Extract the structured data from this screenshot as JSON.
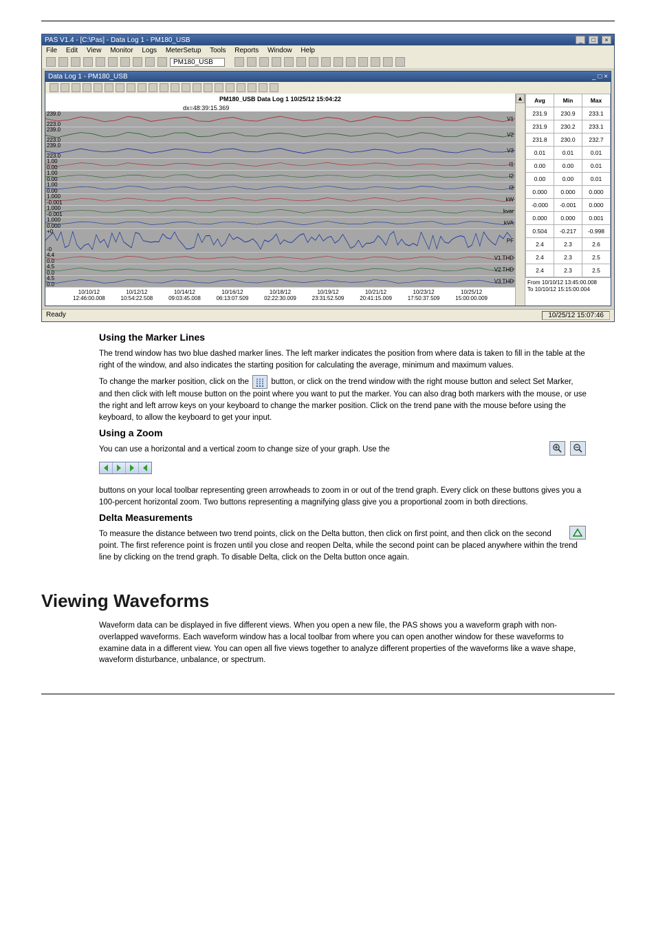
{
  "app_window": {
    "title": "PAS V1.4 - [C:\\Pas] - Data Log 1 - PM180_USB",
    "menu": [
      "File",
      "Edit",
      "View",
      "Monitor",
      "Logs",
      "MeterSetup",
      "Tools",
      "Reports",
      "Window",
      "Help"
    ],
    "device_combo": "PM180_USB"
  },
  "inner_window": {
    "title": "Data Log 1 - PM180_USB",
    "chart_title": "PM180_USB Data Log 1 10/25/12 15:04:22",
    "dx_label": "dx=48:39:15.369",
    "stats_header": [
      "Avg",
      "Min",
      "Max"
    ],
    "guide_positions_pct": [
      17.5,
      34.5
    ],
    "tracks": [
      {
        "name": "V1",
        "y_top": "239.0",
        "y_bot": "223.0",
        "rlabel": "V1",
        "color": "#b02020",
        "stats": [
          "231.9",
          "230.9",
          "233.1"
        ],
        "height": "track"
      },
      {
        "name": "V2",
        "y_top": "239.0",
        "y_bot": "223.0",
        "rlabel": "V2",
        "color": "#206020",
        "stats": [
          "231.9",
          "230.2",
          "233.1"
        ],
        "height": "track"
      },
      {
        "name": "V3",
        "y_top": "239.0",
        "y_bot": "223.0",
        "rlabel": "V3",
        "color": "#1030a0",
        "stats": [
          "231.8",
          "230.0",
          "232.7"
        ],
        "height": "track"
      },
      {
        "name": "I1",
        "y_top": "1.00",
        "y_bot": "0.00",
        "rlabel": "I1",
        "color": "#b02020",
        "stats": [
          "0.01",
          "0.01",
          "0.01"
        ],
        "height": "short"
      },
      {
        "name": "I2",
        "y_top": "1.00",
        "y_bot": "0.00",
        "rlabel": "I2",
        "color": "#206020",
        "stats": [
          "0.00",
          "0.00",
          "0.01"
        ],
        "height": "short"
      },
      {
        "name": "I3",
        "y_top": "1.00",
        "y_bot": "0.00",
        "rlabel": "I3",
        "color": "#1030a0",
        "stats": [
          "0.00",
          "0.00",
          "0.01"
        ],
        "height": "short"
      },
      {
        "name": "kW",
        "y_top": "1.000",
        "y_bot": "-0.001",
        "rlabel": "kW",
        "color": "#b02020",
        "stats": [
          "0.000",
          "0.000",
          "0.000"
        ],
        "height": "short"
      },
      {
        "name": "kvar",
        "y_top": "1.000",
        "y_bot": "-0.001",
        "rlabel": "kvar",
        "color": "#206020",
        "stats": [
          "-0.000",
          "-0.001",
          "0.000"
        ],
        "height": "short"
      },
      {
        "name": "kVA",
        "y_top": "1.000",
        "y_bot": "0.000",
        "rlabel": "kVA",
        "color": "#1030a0",
        "stats": [
          "0.000",
          "0.000",
          "0.001"
        ],
        "height": "short"
      },
      {
        "name": "PF",
        "y_top": "+0",
        "y_bot": "-0",
        "rlabel": "PF",
        "color": "#1030a0",
        "stats": [
          "0.504",
          "-0.217",
          "-0.998"
        ],
        "height": "tall",
        "dense": true
      },
      {
        "name": "V1 THD",
        "y_top": "4.4",
        "y_bot": "0.0",
        "rlabel": "V1 THD",
        "color": "#b02020",
        "stats": [
          "2.4",
          "2.3",
          "2.6"
        ],
        "height": "short"
      },
      {
        "name": "V2 THD",
        "y_top": "4.5",
        "y_bot": "0.0",
        "rlabel": "V2 THD",
        "color": "#206020",
        "stats": [
          "2.4",
          "2.3",
          "2.5"
        ],
        "height": "short"
      },
      {
        "name": "V3 THD",
        "y_top": "4.5",
        "y_bot": "0.0",
        "rlabel": "V3 THD",
        "color": "#1030a0",
        "stats": [
          "2.4",
          "2.3",
          "2.5"
        ],
        "height": "short"
      }
    ],
    "xaxis": [
      {
        "d": "10/10/12",
        "t": "12:46:00.008"
      },
      {
        "d": "10/12/12",
        "t": "10:54:22.508"
      },
      {
        "d": "10/14/12",
        "t": "09:03:45.008"
      },
      {
        "d": "10/16/12",
        "t": "06:13:07.509"
      },
      {
        "d": "10/18/12",
        "t": "02:22:30.009"
      },
      {
        "d": "10/19/12",
        "t": "23:31:52.509"
      },
      {
        "d": "10/21/12",
        "t": "20:41:15.009"
      },
      {
        "d": "10/23/12",
        "t": "17:50:37.509"
      },
      {
        "d": "10/25/12",
        "t": "15:00:00.009"
      }
    ],
    "from_to": {
      "from_label": "From",
      "from_val": "10/10/12 13:45:00.008",
      "to_label": "To",
      "to_val": "10/10/12 15:15:00.004"
    }
  },
  "status_bar": {
    "ready": "Ready",
    "clock": "10/25/12 15:07:46"
  },
  "sections": {
    "marker_heading": "Using the Marker Lines",
    "marker_p1": "The trend window has two blue dashed marker lines. The left marker indicates the position from where data is taken to fill in the table at the right of the window, and also indicates the starting position for calculating the average, minimum and maximum values.",
    "marker_p2_a": "To change the marker position, click on the ",
    "marker_p2_b": " button, or click on the trend window with the right mouse button and select Set Marker, and then click with left mouse button on the point where you want to put the marker. You can also drag both markers with the mouse, or use the right and left arrow keys on your keyboard to change the marker position. Click on the trend pane with the mouse before using the keyboard, to allow the keyboard to get your input.",
    "zoom_heading": "Using a Zoom",
    "zoom_p_a": "You can use a horizontal and a vertical zoom to change size of your graph. Use the ",
    "zoom_p_b": " buttons on your local toolbar representing green arrowheads to zoom in or out of the trend graph. Every click on these buttons gives you a 100-percent horizontal zoom. Two buttons",
    "zoom_p_c": " representing a magnifying glass give you a proportional zoom in both directions.",
    "delta_heading": "Delta Measurements",
    "delta_p_a": "To measure the distance between two trend points, click on the Delta ",
    "delta_p_b": " button, then click on first point, and then click on the second point. The first reference point is frozen until you close and reopen Delta, while the second point can be placed anywhere within the trend line by clicking on the trend graph. To disable Delta, click on the Delta button once again.",
    "waveform_heading": "Viewing Waveforms",
    "waveform_p": "Waveform data can be displayed in five different views. When you open a new file, the PAS shows you a waveform graph with non-overlapped waveforms. Each waveform window has a local toolbar from where you can open another window for these waveforms to examine data in a different view. You can open all five views together to analyze different properties of the waveforms like a wave shape, waveform disturbance, unbalance, or spectrum."
  },
  "icons": {
    "marker_color": "#1646a0",
    "arrow_green": "#2aa02a",
    "delta_color": "#1a8a1a",
    "magnify_color": "#333"
  },
  "colors": {
    "page_bg": "#ffffff",
    "chart_bg": "#a6a6a6"
  }
}
